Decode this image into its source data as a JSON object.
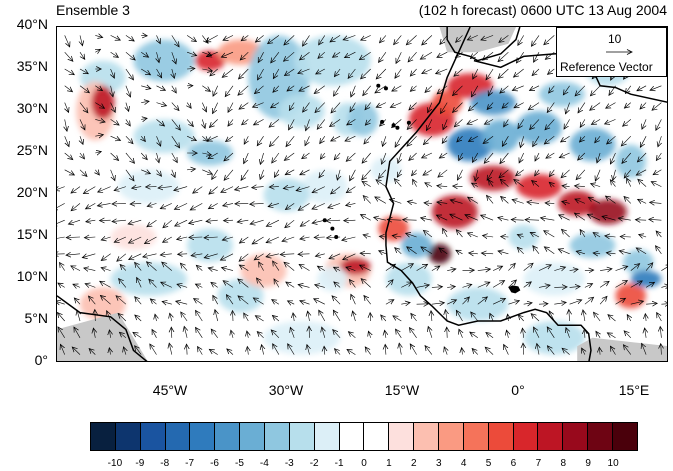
{
  "header": {
    "ensemble_label": "Ensemble 3",
    "forecast_label": "(102 h forecast) 0600 UTC 13 Aug 2004"
  },
  "axes": {
    "lat_labels": [
      "40°N",
      "35°N",
      "30°N",
      "25°N",
      "20°N",
      "15°N",
      "10°N",
      "5°N",
      "0°"
    ],
    "lon_labels": [
      "45°W",
      "30°W",
      "15°W",
      "0°",
      "15°E"
    ]
  },
  "reference_vector": {
    "magnitude": "10",
    "label": "Reference Vector"
  },
  "colorbar": {
    "labels": [
      "-10",
      "-9",
      "-8",
      "-7",
      "-6",
      "-5",
      "-4",
      "-3",
      "-2",
      "-1",
      "0",
      "1",
      "2",
      "3",
      "4",
      "5",
      "6",
      "7",
      "8",
      "9",
      "10"
    ],
    "colors": [
      "#08203f",
      "#0d356e",
      "#1a54a0",
      "#2469b0",
      "#2f7bbd",
      "#4a94c8",
      "#6aaed4",
      "#8fc7e0",
      "#b7dfec",
      "#dceff7",
      "#ffffff",
      "#ffffff",
      "#fde0dd",
      "#fcbfb0",
      "#fa9a82",
      "#f5735a",
      "#ec4b3a",
      "#d8262b",
      "#bd1524",
      "#98091c",
      "#6e0413",
      "#4a000b"
    ]
  },
  "map": {
    "land_color": "#c8c8c8",
    "coast_color": "#000000"
  }
}
